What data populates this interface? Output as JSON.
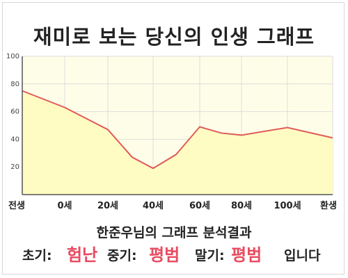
{
  "title": "재미로 보는 당신의 인생 그래프",
  "chart_data": {
    "type": "area",
    "x_ticks": [
      "전생",
      "0세",
      "20세",
      "40세",
      "60세",
      "80세",
      "100세",
      "환생"
    ],
    "y_ticks": [
      "20",
      "40",
      "60",
      "80",
      "100"
    ],
    "ylim": [
      0,
      100
    ],
    "grid": true,
    "points": [
      {
        "x": "전생",
        "y": 75
      },
      {
        "x": "0세",
        "y": 63
      },
      {
        "x": "20세",
        "y": 47
      },
      {
        "x": "30세",
        "y": 27
      },
      {
        "x": "40세",
        "y": 19
      },
      {
        "x": "50세",
        "y": 29
      },
      {
        "x": "60세",
        "y": 49
      },
      {
        "x": "70세",
        "y": 44.5
      },
      {
        "x": "80세",
        "y": 43
      },
      {
        "x": "100세",
        "y": 48.5
      },
      {
        "x": "환생",
        "y": 41
      }
    ],
    "line_color": "#e05a5a",
    "fill_color": "#fefcc2",
    "plot_bg": "#fefee8"
  },
  "result": {
    "heading": "한준우님의 그래프 분석결과",
    "early_label": "초기:",
    "early_value": "험난",
    "middle_label": "중기:",
    "middle_value": "평범",
    "late_label": "말기:",
    "late_value": "평범",
    "suffix": "입니다"
  },
  "colors": {
    "highlight": "#e84a5f",
    "grid": "#dcdcdc"
  }
}
